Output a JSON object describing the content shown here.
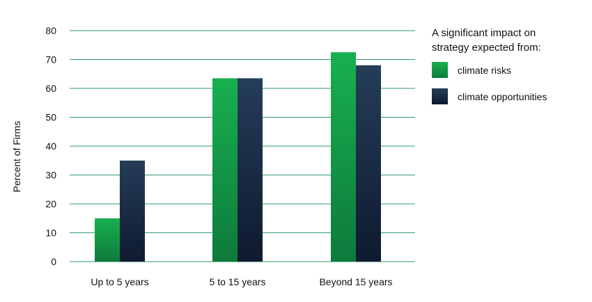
{
  "chart_data": {
    "type": "bar",
    "ylabel": "Percent of Firms",
    "ylim": [
      0,
      80
    ],
    "yticks": [
      0,
      10,
      20,
      30,
      40,
      50,
      60,
      70,
      80
    ],
    "grid": true,
    "categories": [
      "Up to 5 years",
      "5 to 15 years",
      "Beyond 15 years"
    ],
    "series": [
      {
        "name": "climate risks",
        "values": [
          15,
          63.5,
          72.5
        ],
        "color": "#16a34a"
      },
      {
        "name": "climate opportunities",
        "values": [
          35,
          63.5,
          68
        ],
        "color": "#1c3050"
      }
    ],
    "legend": {
      "title_lines": [
        "A significant impact on",
        "strategy expected from:"
      ],
      "placement": "top-right"
    }
  }
}
